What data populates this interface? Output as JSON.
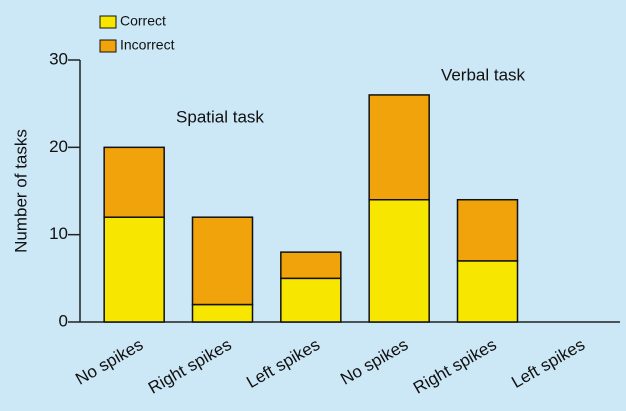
{
  "chart_data": {
    "type": "stacked_bar",
    "y_label": "Number of tasks",
    "annotations": [
      "Spatial task",
      "Verbal task"
    ],
    "categories": [
      "No spikes",
      "Right spikes",
      "Left spikes",
      "No spikes",
      "Right spikes",
      "Left spikes"
    ],
    "series": [
      {
        "name": "Correct",
        "color": "#f7e600",
        "values": [
          12,
          2,
          5,
          14,
          7,
          0
        ]
      },
      {
        "name": "Incorrect",
        "color": "#f0a30a",
        "values": [
          8,
          10,
          3,
          12,
          7,
          0
        ]
      }
    ],
    "ylim": [
      0,
      30
    ],
    "yticks": [
      0,
      10,
      20,
      30
    ]
  }
}
